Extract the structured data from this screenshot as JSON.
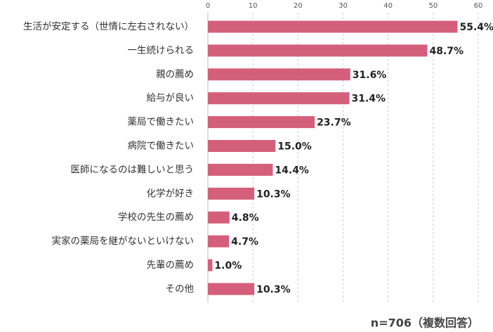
{
  "chart_data": {
    "type": "bar",
    "orientation": "horizontal",
    "categories": [
      "生活が安定する（世情に左右されない）",
      "一生続けられる",
      "親の薦め",
      "給与が良い",
      "薬局で働きたい",
      "病院で働きたい",
      "医師になるのは難しいと思う",
      "化学が好き",
      "学校の先生の薦め",
      "実家の薬局を継がないといけない",
      "先輩の薦め",
      "その他"
    ],
    "values": [
      55.4,
      48.7,
      31.6,
      31.4,
      23.7,
      15.0,
      14.4,
      10.3,
      4.8,
      4.7,
      1.0,
      10.3
    ],
    "value_labels": [
      "55.4%",
      "48.7%",
      "31.6%",
      "31.4%",
      "23.7%",
      "15.0%",
      "14.4%",
      "10.3%",
      "4.8%",
      "4.7%",
      "1.0%",
      "10.3%"
    ],
    "color": "#d45f7b",
    "xlim": [
      0,
      60
    ],
    "xticks": [
      0,
      10,
      20,
      30,
      40,
      50,
      60
    ],
    "grid": true,
    "annotation": "n=706（複数回答）"
  }
}
